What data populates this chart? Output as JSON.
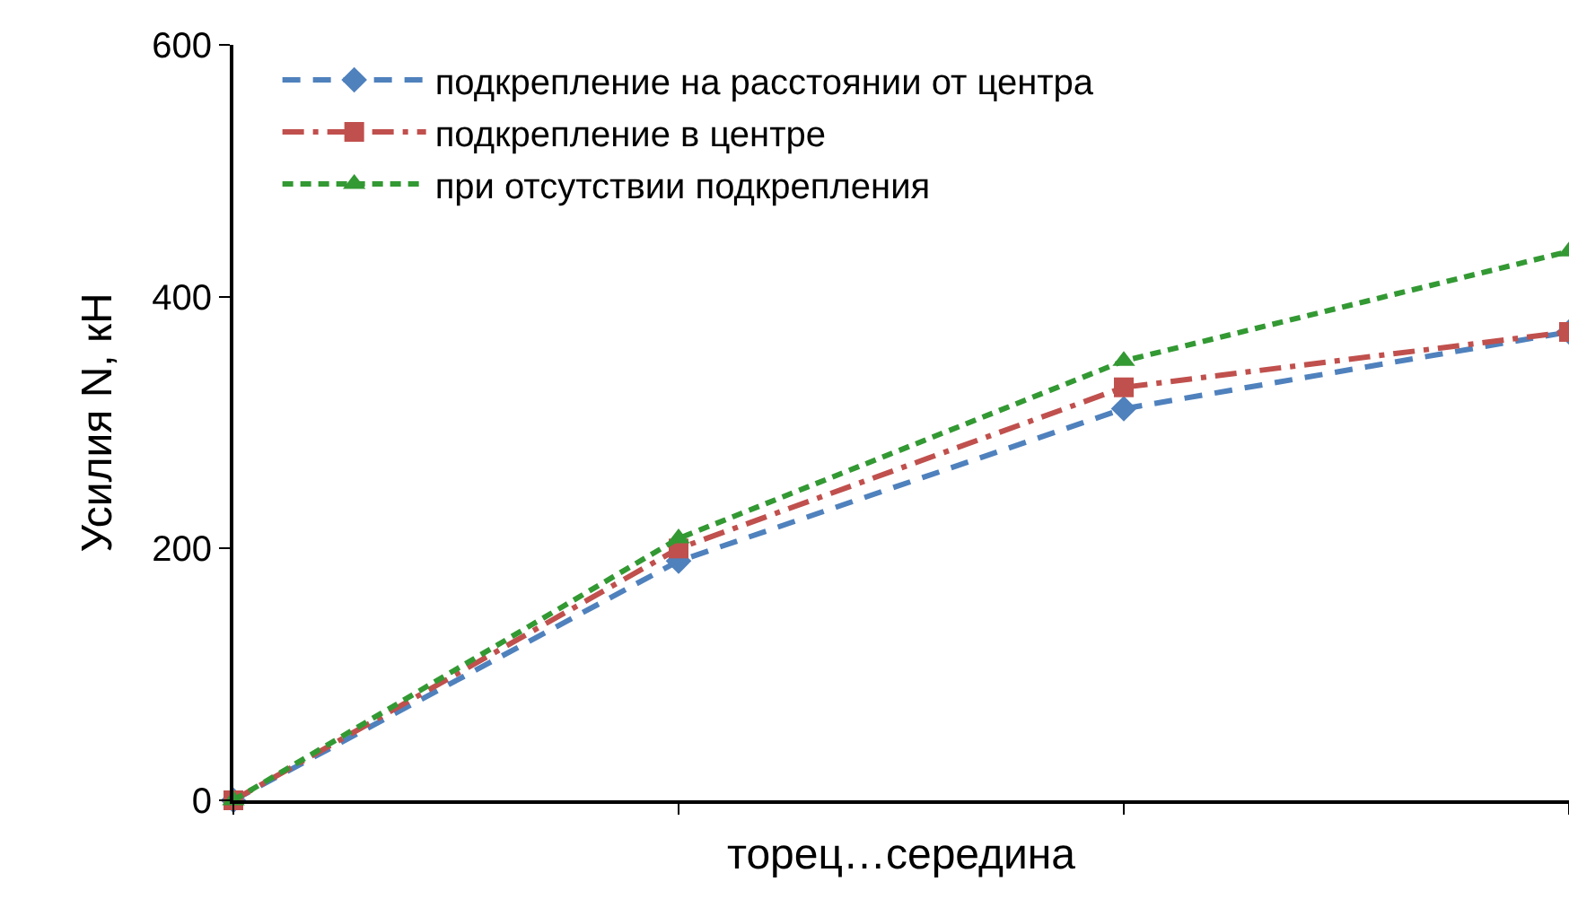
{
  "chart_data": {
    "type": "line",
    "xlabel": "торец…середина",
    "ylabel": "Усилия N, кН",
    "categories": [
      null,
      null,
      null,
      null
    ],
    "ylim": [
      0,
      600
    ],
    "yticks": [
      0,
      200,
      400,
      600
    ],
    "legend": "top left",
    "series": [
      {
        "name": "подкрепление на расстоянии от центра",
        "color": "#4f81bd",
        "values": [
          0,
          190,
          311,
          372
        ],
        "marker": "diamond",
        "line_style": "dashed"
      },
      {
        "name": "подкрепление в центре",
        "color": "#c0504d",
        "values": [
          0,
          200,
          328,
          372
        ],
        "marker": "square",
        "line_style": "dashdot"
      },
      {
        "name": "при отсутствии подкрепления",
        "color": "#339933",
        "values": [
          0,
          208,
          349,
          436
        ],
        "marker": "triangle",
        "line_style": "dotted"
      }
    ]
  }
}
